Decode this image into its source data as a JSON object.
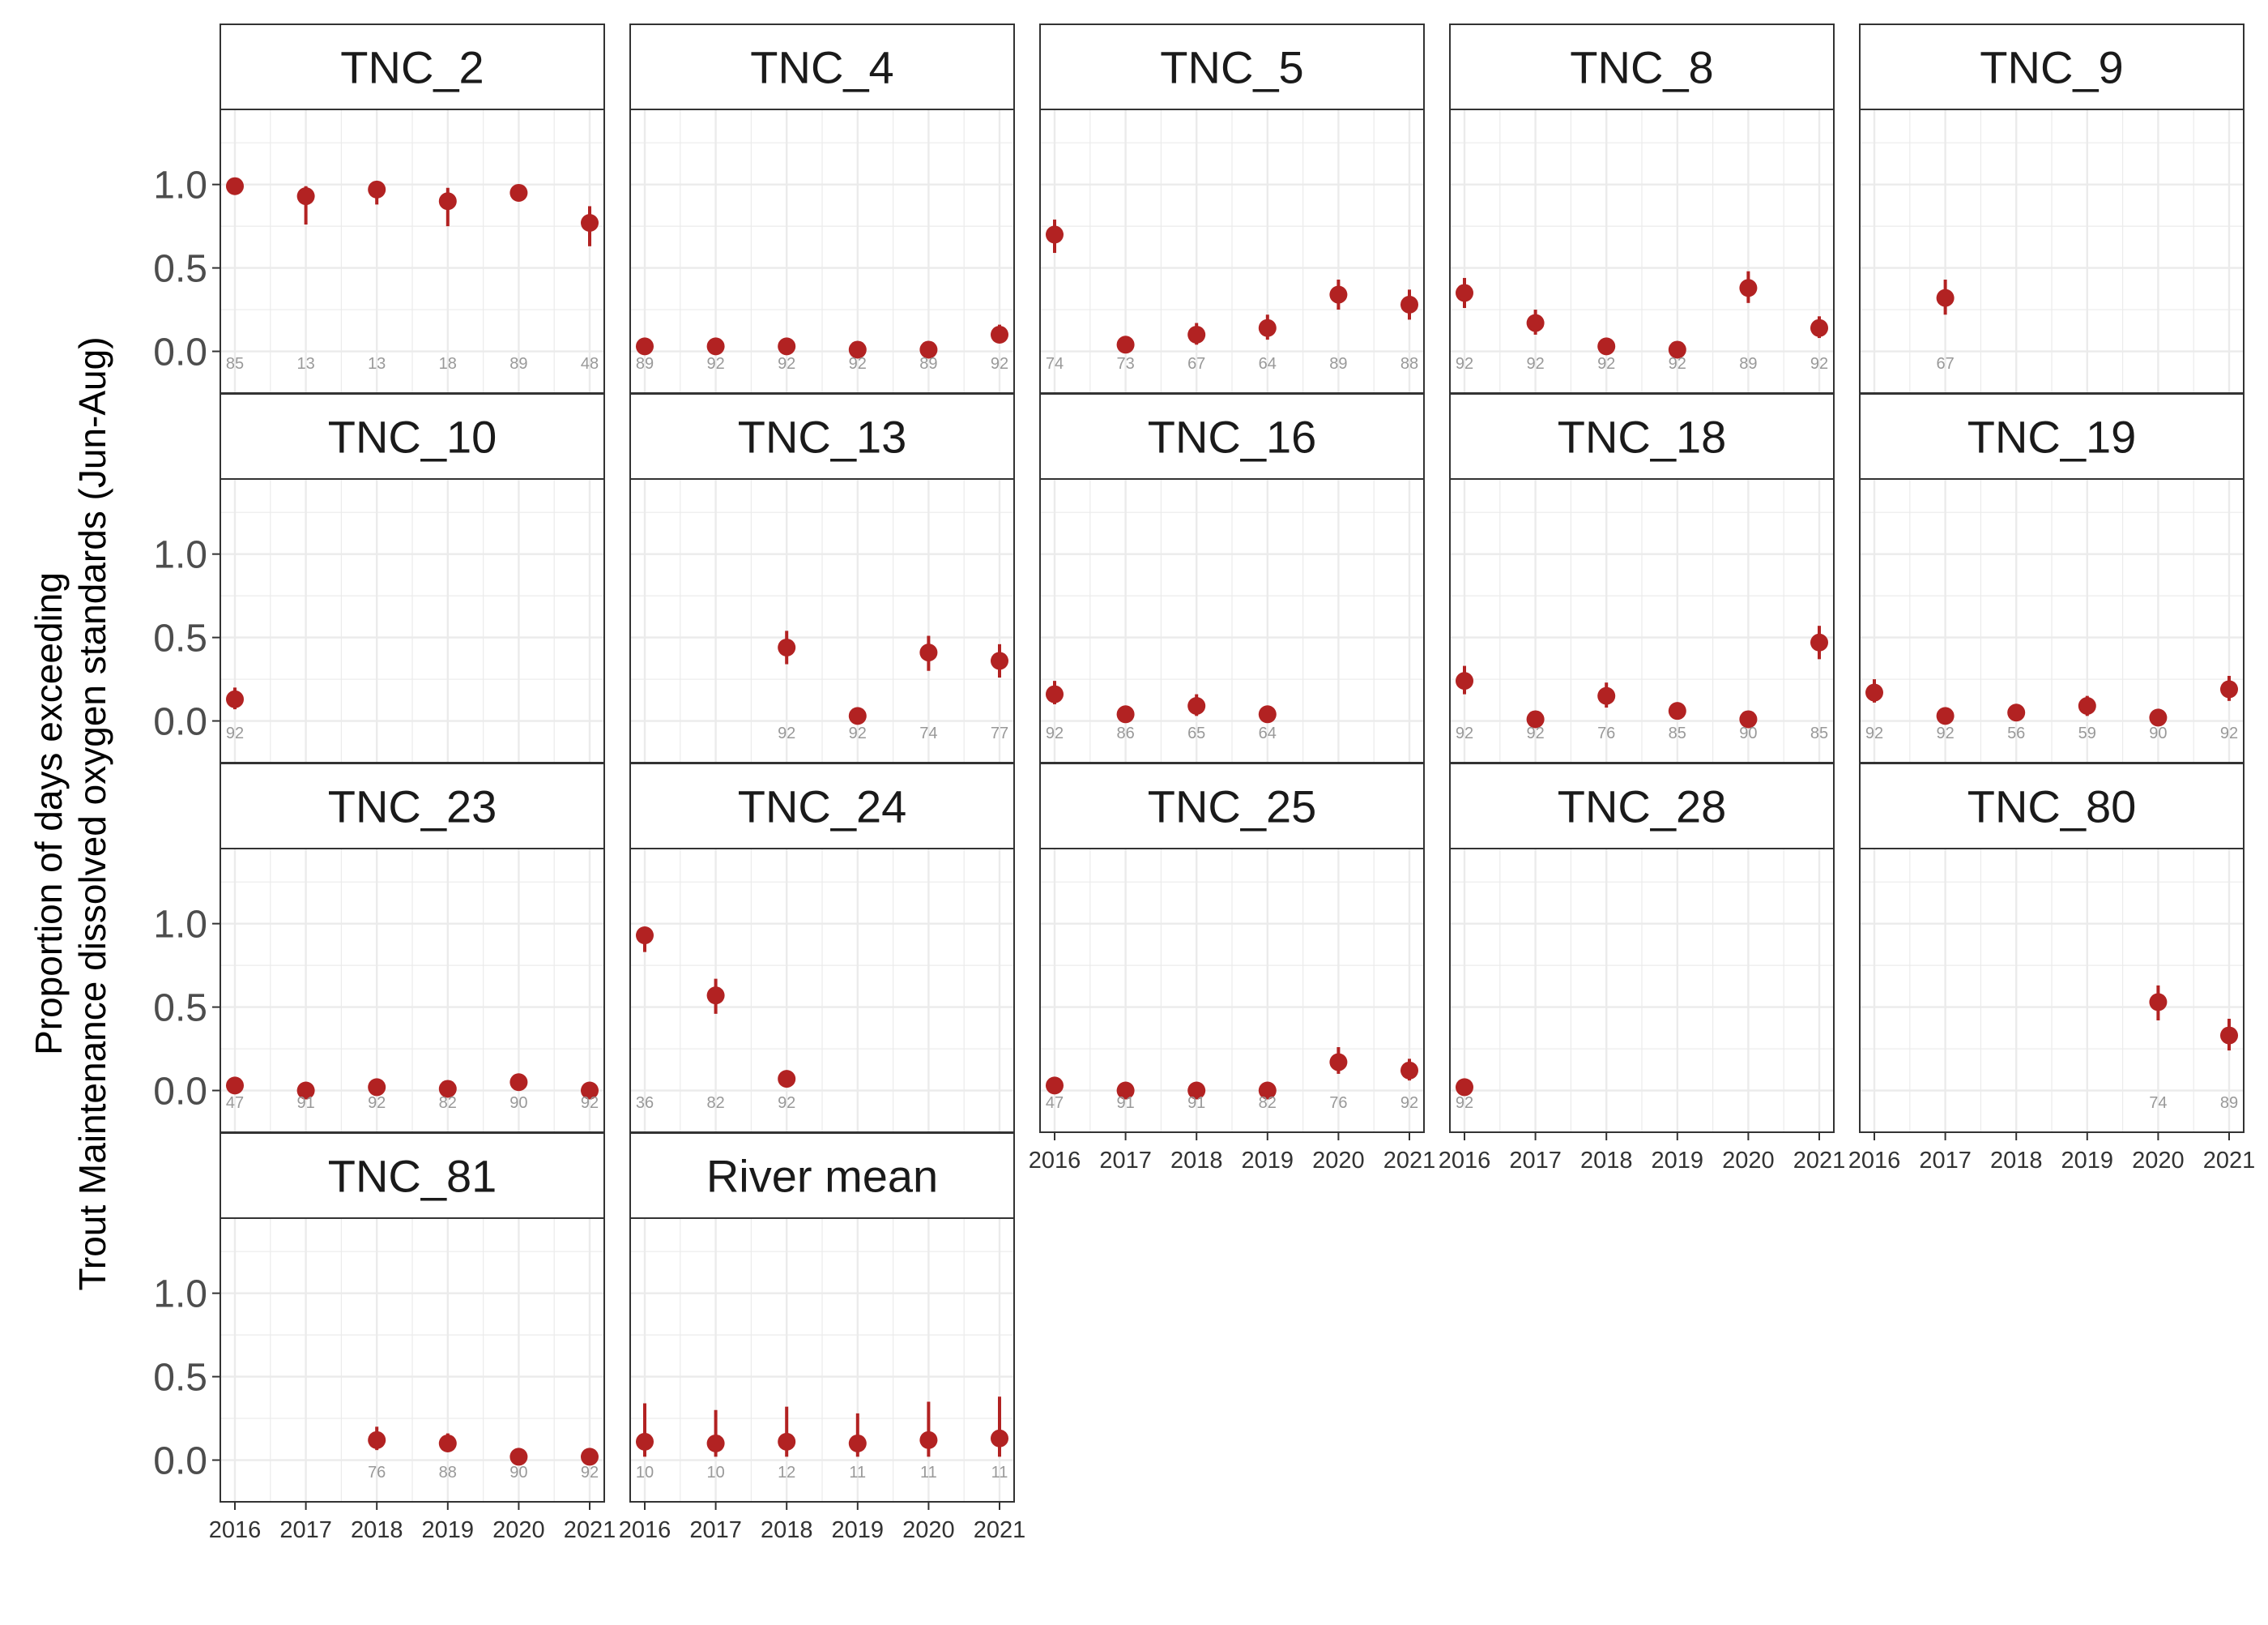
{
  "chart_data": {
    "type": "scatter",
    "description_kind": "faceted point-range plot",
    "ylabel_line1": "Proportion of days exceeding",
    "ylabel_line2": "Trout Maintenance dissolved oxygen standards (Jun-Aug)",
    "xlabel": "",
    "x_ticks": [
      "2016",
      "2017",
      "2018",
      "2019",
      "2020",
      "2021"
    ],
    "y_ticks": [
      "0.0",
      "0.5",
      "1.0"
    ],
    "ylim": [
      -0.25,
      1.45
    ],
    "grid": true,
    "colors": {
      "point": "#B22222",
      "count_label": "#999999",
      "strip_bg": "#ffffff",
      "grid": "#EBEBEB"
    },
    "panels": [
      {
        "title": "TNC_2",
        "points": [
          {
            "x": "2016",
            "y": 0.99,
            "lo": 0.96,
            "hi": 1.0,
            "n": "85"
          },
          {
            "x": "2017",
            "y": 0.93,
            "lo": 0.76,
            "hi": 0.99,
            "n": "13"
          },
          {
            "x": "2018",
            "y": 0.97,
            "lo": 0.88,
            "hi": 1.0,
            "n": "13"
          },
          {
            "x": "2019",
            "y": 0.9,
            "lo": 0.75,
            "hi": 0.98,
            "n": "18"
          },
          {
            "x": "2020",
            "y": 0.95,
            "lo": 0.91,
            "hi": 0.98,
            "n": "89"
          },
          {
            "x": "2021",
            "y": 0.77,
            "lo": 0.63,
            "hi": 0.87,
            "n": "48"
          }
        ]
      },
      {
        "title": "TNC_4",
        "points": [
          {
            "x": "2016",
            "y": 0.03,
            "lo": 0.01,
            "hi": 0.06,
            "n": "89"
          },
          {
            "x": "2017",
            "y": 0.03,
            "lo": 0.01,
            "hi": 0.06,
            "n": "92"
          },
          {
            "x": "2018",
            "y": 0.03,
            "lo": 0.01,
            "hi": 0.06,
            "n": "92"
          },
          {
            "x": "2019",
            "y": 0.01,
            "lo": 0.0,
            "hi": 0.03,
            "n": "92"
          },
          {
            "x": "2020",
            "y": 0.01,
            "lo": 0.0,
            "hi": 0.03,
            "n": "89"
          },
          {
            "x": "2021",
            "y": 0.1,
            "lo": 0.05,
            "hi": 0.16,
            "n": "92"
          }
        ]
      },
      {
        "title": "TNC_5",
        "points": [
          {
            "x": "2016",
            "y": 0.7,
            "lo": 0.59,
            "hi": 0.79,
            "n": "74"
          },
          {
            "x": "2017",
            "y": 0.04,
            "lo": 0.01,
            "hi": 0.08,
            "n": "73"
          },
          {
            "x": "2018",
            "y": 0.1,
            "lo": 0.04,
            "hi": 0.17,
            "n": "67"
          },
          {
            "x": "2019",
            "y": 0.14,
            "lo": 0.07,
            "hi": 0.22,
            "n": "64"
          },
          {
            "x": "2020",
            "y": 0.34,
            "lo": 0.25,
            "hi": 0.43,
            "n": "89"
          },
          {
            "x": "2021",
            "y": 0.28,
            "lo": 0.19,
            "hi": 0.37,
            "n": "88"
          }
        ]
      },
      {
        "title": "TNC_8",
        "points": [
          {
            "x": "2016",
            "y": 0.35,
            "lo": 0.26,
            "hi": 0.44,
            "n": "92"
          },
          {
            "x": "2017",
            "y": 0.17,
            "lo": 0.1,
            "hi": 0.25,
            "n": "92"
          },
          {
            "x": "2018",
            "y": 0.03,
            "lo": 0.01,
            "hi": 0.06,
            "n": "92"
          },
          {
            "x": "2019",
            "y": 0.01,
            "lo": 0.0,
            "hi": 0.03,
            "n": "92"
          },
          {
            "x": "2020",
            "y": 0.38,
            "lo": 0.29,
            "hi": 0.48,
            "n": "89"
          },
          {
            "x": "2021",
            "y": 0.14,
            "lo": 0.08,
            "hi": 0.21,
            "n": "92"
          }
        ]
      },
      {
        "title": "TNC_9",
        "points": [
          {
            "x": "2017",
            "y": 0.32,
            "lo": 0.22,
            "hi": 0.43,
            "n": "67"
          }
        ]
      },
      {
        "title": "TNC_10",
        "points": [
          {
            "x": "2016",
            "y": 0.13,
            "lo": 0.07,
            "hi": 0.2,
            "n": "92"
          }
        ]
      },
      {
        "title": "TNC_13",
        "points": [
          {
            "x": "2018",
            "y": 0.44,
            "lo": 0.34,
            "hi": 0.54,
            "n": "92"
          },
          {
            "x": "2019",
            "y": 0.03,
            "lo": 0.01,
            "hi": 0.06,
            "n": "92"
          },
          {
            "x": "2020",
            "y": 0.41,
            "lo": 0.3,
            "hi": 0.51,
            "n": "74"
          },
          {
            "x": "2021",
            "y": 0.36,
            "lo": 0.26,
            "hi": 0.46,
            "n": "77"
          }
        ]
      },
      {
        "title": "TNC_16",
        "points": [
          {
            "x": "2016",
            "y": 0.16,
            "lo": 0.1,
            "hi": 0.24,
            "n": "92"
          },
          {
            "x": "2017",
            "y": 0.04,
            "lo": 0.01,
            "hi": 0.08,
            "n": "86"
          },
          {
            "x": "2018",
            "y": 0.09,
            "lo": 0.03,
            "hi": 0.16,
            "n": "65"
          },
          {
            "x": "2019",
            "y": 0.04,
            "lo": 0.01,
            "hi": 0.08,
            "n": "64"
          }
        ]
      },
      {
        "title": "TNC_18",
        "points": [
          {
            "x": "2016",
            "y": 0.24,
            "lo": 0.16,
            "hi": 0.33,
            "n": "92"
          },
          {
            "x": "2017",
            "y": 0.01,
            "lo": 0.0,
            "hi": 0.03,
            "n": "92"
          },
          {
            "x": "2018",
            "y": 0.15,
            "lo": 0.08,
            "hi": 0.23,
            "n": "76"
          },
          {
            "x": "2019",
            "y": 0.06,
            "lo": 0.02,
            "hi": 0.1,
            "n": "85"
          },
          {
            "x": "2020",
            "y": 0.01,
            "lo": 0.0,
            "hi": 0.03,
            "n": "90"
          },
          {
            "x": "2021",
            "y": 0.47,
            "lo": 0.37,
            "hi": 0.57,
            "n": "85"
          }
        ]
      },
      {
        "title": "TNC_19",
        "points": [
          {
            "x": "2016",
            "y": 0.17,
            "lo": 0.11,
            "hi": 0.25,
            "n": "92"
          },
          {
            "x": "2017",
            "y": 0.03,
            "lo": 0.01,
            "hi": 0.06,
            "n": "92"
          },
          {
            "x": "2018",
            "y": 0.05,
            "lo": 0.01,
            "hi": 0.09,
            "n": "56"
          },
          {
            "x": "2019",
            "y": 0.09,
            "lo": 0.03,
            "hi": 0.15,
            "n": "59"
          },
          {
            "x": "2020",
            "y": 0.02,
            "lo": 0.0,
            "hi": 0.04,
            "n": "90"
          },
          {
            "x": "2021",
            "y": 0.19,
            "lo": 0.12,
            "hi": 0.27,
            "n": "92"
          }
        ]
      },
      {
        "title": "TNC_23",
        "points": [
          {
            "x": "2016",
            "y": 0.03,
            "lo": 0.0,
            "hi": 0.06,
            "n": "47"
          },
          {
            "x": "2017",
            "y": 0.0,
            "lo": 0.0,
            "hi": 0.02,
            "n": "91"
          },
          {
            "x": "2018",
            "y": 0.02,
            "lo": 0.0,
            "hi": 0.04,
            "n": "92"
          },
          {
            "x": "2019",
            "y": 0.01,
            "lo": 0.0,
            "hi": 0.03,
            "n": "82"
          },
          {
            "x": "2020",
            "y": 0.05,
            "lo": 0.02,
            "hi": 0.09,
            "n": "90"
          },
          {
            "x": "2021",
            "y": 0.0,
            "lo": 0.0,
            "hi": 0.02,
            "n": "92"
          }
        ]
      },
      {
        "title": "TNC_24",
        "points": [
          {
            "x": "2016",
            "y": 0.93,
            "lo": 0.83,
            "hi": 0.98,
            "n": "36"
          },
          {
            "x": "2017",
            "y": 0.57,
            "lo": 0.46,
            "hi": 0.67,
            "n": "82"
          },
          {
            "x": "2018",
            "y": 0.07,
            "lo": 0.03,
            "hi": 0.12,
            "n": "92"
          }
        ]
      },
      {
        "title": "TNC_25",
        "points": [
          {
            "x": "2016",
            "y": 0.03,
            "lo": 0.0,
            "hi": 0.06,
            "n": "47"
          },
          {
            "x": "2017",
            "y": 0.0,
            "lo": 0.0,
            "hi": 0.02,
            "n": "91"
          },
          {
            "x": "2018",
            "y": 0.0,
            "lo": 0.0,
            "hi": 0.02,
            "n": "91"
          },
          {
            "x": "2019",
            "y": 0.0,
            "lo": 0.0,
            "hi": 0.02,
            "n": "82"
          },
          {
            "x": "2020",
            "y": 0.17,
            "lo": 0.1,
            "hi": 0.26,
            "n": "76"
          },
          {
            "x": "2021",
            "y": 0.12,
            "lo": 0.06,
            "hi": 0.19,
            "n": "92"
          }
        ]
      },
      {
        "title": "TNC_28",
        "points": [
          {
            "x": "2016",
            "y": 0.02,
            "lo": 0.0,
            "hi": 0.04,
            "n": "92"
          }
        ]
      },
      {
        "title": "TNC_80",
        "points": [
          {
            "x": "2020",
            "y": 0.53,
            "lo": 0.42,
            "hi": 0.63,
            "n": "74"
          },
          {
            "x": "2021",
            "y": 0.33,
            "lo": 0.24,
            "hi": 0.43,
            "n": "89"
          }
        ]
      },
      {
        "title": "TNC_81",
        "points": [
          {
            "x": "2018",
            "y": 0.12,
            "lo": 0.06,
            "hi": 0.2,
            "n": "76"
          },
          {
            "x": "2019",
            "y": 0.1,
            "lo": 0.05,
            "hi": 0.16,
            "n": "88"
          },
          {
            "x": "2020",
            "y": 0.02,
            "lo": 0.0,
            "hi": 0.04,
            "n": "90"
          },
          {
            "x": "2021",
            "y": 0.02,
            "lo": 0.0,
            "hi": 0.04,
            "n": "92"
          }
        ]
      },
      {
        "title": "River mean",
        "points": [
          {
            "x": "2016",
            "y": 0.11,
            "lo": 0.02,
            "hi": 0.34,
            "n": "10"
          },
          {
            "x": "2017",
            "y": 0.1,
            "lo": 0.02,
            "hi": 0.3,
            "n": "10"
          },
          {
            "x": "2018",
            "y": 0.11,
            "lo": 0.02,
            "hi": 0.32,
            "n": "12"
          },
          {
            "x": "2019",
            "y": 0.1,
            "lo": 0.02,
            "hi": 0.28,
            "n": "11"
          },
          {
            "x": "2020",
            "y": 0.12,
            "lo": 0.02,
            "hi": 0.35,
            "n": "11"
          },
          {
            "x": "2021",
            "y": 0.13,
            "lo": 0.02,
            "hi": 0.38,
            "n": "11"
          }
        ]
      }
    ]
  }
}
